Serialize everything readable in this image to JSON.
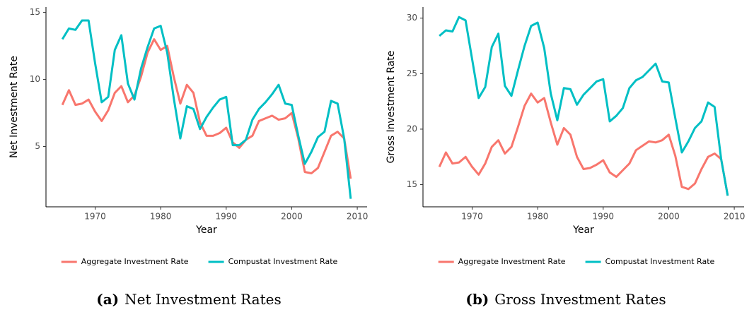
{
  "chart_data": [
    {
      "type": "line",
      "x_label": "Year",
      "y_label": "Net Investment Rate",
      "caption_label": "(a)",
      "caption": "Net Investment Rates",
      "x": [
        1965,
        1966,
        1967,
        1968,
        1969,
        1970,
        1971,
        1972,
        1973,
        1974,
        1975,
        1976,
        1977,
        1978,
        1979,
        1980,
        1981,
        1982,
        1983,
        1984,
        1985,
        1986,
        1987,
        1988,
        1989,
        1990,
        1991,
        1992,
        1993,
        1994,
        1995,
        1996,
        1997,
        1998,
        1999,
        2000,
        2001,
        2002,
        2003,
        2004,
        2005,
        2006,
        2007,
        2008,
        2009
      ],
      "xlim": [
        1962.5,
        2011.5
      ],
      "xticks": [
        1970,
        1980,
        1990,
        2000,
        2010
      ],
      "ylim": [
        0.5,
        15.4
      ],
      "yticks": [
        5,
        10,
        15
      ],
      "series": [
        {
          "name": "Aggregate Investment Rate",
          "color": "#f8766d",
          "values": [
            8.1,
            9.2,
            8.1,
            8.2,
            8.5,
            7.6,
            6.9,
            7.7,
            9.0,
            9.5,
            8.3,
            8.8,
            10.2,
            12.0,
            13.0,
            12.2,
            12.5,
            10.2,
            8.2,
            9.6,
            9.0,
            6.8,
            5.8,
            5.8,
            6.0,
            6.4,
            5.3,
            4.9,
            5.5,
            5.8,
            6.9,
            7.1,
            7.3,
            7.0,
            7.1,
            7.5,
            5.6,
            3.1,
            3.0,
            3.4,
            4.6,
            5.8,
            6.1,
            5.6,
            2.6
          ]
        },
        {
          "name": "Compustat Investment Rate",
          "color": "#00bfc4",
          "values": [
            13.0,
            13.8,
            13.7,
            14.4,
            14.4,
            11.2,
            8.3,
            8.7,
            12.2,
            13.3,
            9.7,
            8.5,
            10.8,
            12.4,
            13.8,
            14.0,
            12.0,
            8.6,
            5.6,
            8.0,
            7.8,
            6.3,
            7.2,
            7.9,
            8.5,
            8.7,
            5.1,
            5.1,
            5.5,
            7.0,
            7.8,
            8.3,
            8.9,
            9.6,
            8.2,
            8.1,
            5.8,
            3.7,
            4.6,
            5.7,
            6.1,
            8.4,
            8.2,
            5.6,
            1.1
          ]
        }
      ]
    },
    {
      "type": "line",
      "x_label": "Year",
      "y_label": "Gross Investment Rate",
      "caption_label": "(b)",
      "caption": "Gross Investment Rates",
      "x": [
        1965,
        1966,
        1967,
        1968,
        1969,
        1970,
        1971,
        1972,
        1973,
        1974,
        1975,
        1976,
        1977,
        1978,
        1979,
        1980,
        1981,
        1982,
        1983,
        1984,
        1985,
        1986,
        1987,
        1988,
        1989,
        1990,
        1991,
        1992,
        1993,
        1994,
        1995,
        1996,
        1997,
        1998,
        1999,
        2000,
        2001,
        2002,
        2003,
        2004,
        2005,
        2006,
        2007,
        2008,
        2009
      ],
      "xlim": [
        1962.5,
        2011.5
      ],
      "xticks": [
        1970,
        1980,
        1990,
        2000,
        2010
      ],
      "ylim": [
        13.0,
        31.0
      ],
      "yticks": [
        15,
        20,
        25,
        30
      ],
      "series": [
        {
          "name": "Aggregate Investment Rate",
          "color": "#f8766d",
          "values": [
            16.6,
            17.9,
            16.9,
            17.0,
            17.5,
            16.6,
            15.9,
            16.9,
            18.4,
            19.0,
            17.8,
            18.4,
            20.2,
            22.1,
            23.2,
            22.4,
            22.8,
            20.6,
            18.6,
            20.1,
            19.5,
            17.5,
            16.4,
            16.5,
            16.8,
            17.2,
            16.1,
            15.7,
            16.3,
            16.9,
            18.1,
            18.5,
            18.9,
            18.8,
            19.0,
            19.5,
            17.6,
            14.8,
            14.6,
            15.1,
            16.4,
            17.5,
            17.8,
            17.3,
            14.0
          ]
        },
        {
          "name": "Compustat Investment Rate",
          "color": "#00bfc4",
          "values": [
            28.4,
            28.9,
            28.8,
            30.1,
            29.8,
            26.3,
            22.8,
            23.8,
            27.4,
            28.6,
            23.9,
            23.0,
            25.3,
            27.5,
            29.3,
            29.6,
            27.3,
            23.2,
            20.8,
            23.7,
            23.6,
            22.2,
            23.1,
            23.7,
            24.3,
            24.5,
            20.7,
            21.2,
            21.9,
            23.7,
            24.4,
            24.7,
            25.3,
            25.9,
            24.3,
            24.2,
            21.0,
            17.9,
            18.9,
            20.1,
            20.7,
            22.4,
            22.0,
            17.3,
            14.0
          ]
        }
      ]
    }
  ]
}
